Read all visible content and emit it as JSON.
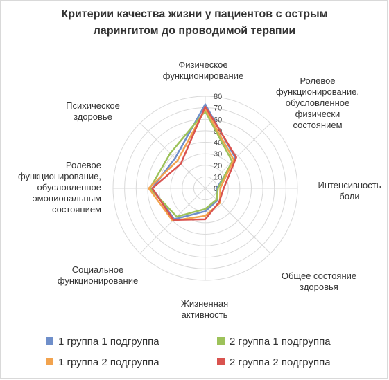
{
  "chart_data": {
    "type": "radar",
    "title_lines": [
      "Критерии качества жизни у пациентов с острым",
      "ларингитом до проводимой терапии"
    ],
    "axes": [
      {
        "label_lines": [
          "Физическое",
          "функционирование"
        ]
      },
      {
        "label_lines": [
          "Ролевое",
          "функционирование,",
          "обусловленное",
          "физически",
          "состоянием"
        ]
      },
      {
        "label_lines": [
          "Интенсивность",
          "боли"
        ]
      },
      {
        "label_lines": [
          "Общее состояние",
          "здоровья"
        ]
      },
      {
        "label_lines": [
          "Жизненная",
          "активность"
        ]
      },
      {
        "label_lines": [
          "Социальное",
          "функционирование"
        ]
      },
      {
        "label_lines": [
          "Ролевое",
          "функционирование,",
          "обусловленное",
          "эмоциональным",
          "состоянием"
        ]
      },
      {
        "label_lines": [
          "Психическое",
          "здоровье"
        ]
      }
    ],
    "rlim": [
      0,
      80
    ],
    "ticks": [
      "0",
      "10",
      "20",
      "30",
      "40",
      "50",
      "60",
      "70",
      "80"
    ],
    "series": [
      {
        "name": "1 группа 1 подгруппа",
        "color": "#6f8fca",
        "values": [
          73,
          37,
          10,
          15,
          20,
          38,
          46,
          37
        ]
      },
      {
        "name": "2 группа 1 подгруппа",
        "color": "#9dc25a",
        "values": [
          67,
          33,
          11,
          14,
          18,
          35,
          48,
          43
        ]
      },
      {
        "name": "1 группа 2 подгруппа",
        "color": "#f2a34e",
        "values": [
          69,
          35,
          13,
          18,
          24,
          40,
          49,
          34
        ]
      },
      {
        "name": "2 группа 2 подгруппа",
        "color": "#d9534f",
        "values": [
          71,
          38,
          16,
          17,
          27,
          39,
          46,
          30
        ]
      }
    ]
  }
}
